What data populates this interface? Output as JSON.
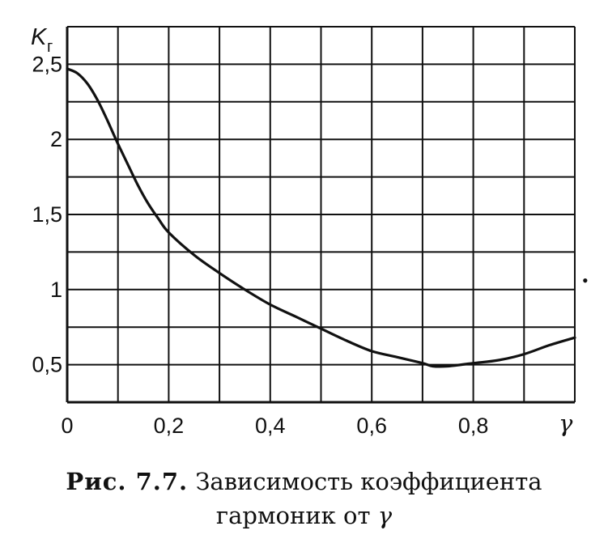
{
  "chart_data": {
    "type": "line",
    "ylabel_main": "K",
    "ylabel_sub": "г",
    "xlabel": "γ",
    "xlim": [
      0,
      1.0
    ],
    "ylim": [
      0.25,
      2.75
    ],
    "x_grid_step": 0.1,
    "y_grid_step": 0.25,
    "grid": true,
    "x_tick_labels": [
      {
        "value": 0,
        "label": "0"
      },
      {
        "value": 0.2,
        "label": "0,2"
      },
      {
        "value": 0.4,
        "label": "0,4"
      },
      {
        "value": 0.6,
        "label": "0,6"
      },
      {
        "value": 0.8,
        "label": "0,8"
      }
    ],
    "y_tick_labels": [
      {
        "value": 2.5,
        "label": "2,5"
      },
      {
        "value": 2.0,
        "label": "2"
      },
      {
        "value": 1.5,
        "label": "1,5"
      },
      {
        "value": 1.0,
        "label": "1"
      },
      {
        "value": 0.5,
        "label": "0,5"
      }
    ],
    "series": [
      {
        "x": [
          0,
          0.02,
          0.04,
          0.06,
          0.08,
          0.1,
          0.12,
          0.14,
          0.16,
          0.18,
          0.2,
          0.25,
          0.3,
          0.35,
          0.4,
          0.45,
          0.5,
          0.55,
          0.6,
          0.65,
          0.7,
          0.72,
          0.75,
          0.8,
          0.85,
          0.9,
          0.95,
          1.0
        ],
        "y": [
          2.47,
          2.44,
          2.37,
          2.26,
          2.12,
          1.97,
          1.83,
          1.69,
          1.57,
          1.47,
          1.38,
          1.23,
          1.11,
          1.0,
          0.9,
          0.82,
          0.74,
          0.66,
          0.59,
          0.55,
          0.51,
          0.49,
          0.49,
          0.51,
          0.53,
          0.57,
          0.63,
          0.68
        ]
      }
    ],
    "color": "#111111"
  },
  "caption": {
    "label": "Рис. 7.7.",
    "line1": " Зависимость коэффициента",
    "line2_text": "гармоник от ",
    "line2_symbol": "γ"
  },
  "stray_mark": "•"
}
